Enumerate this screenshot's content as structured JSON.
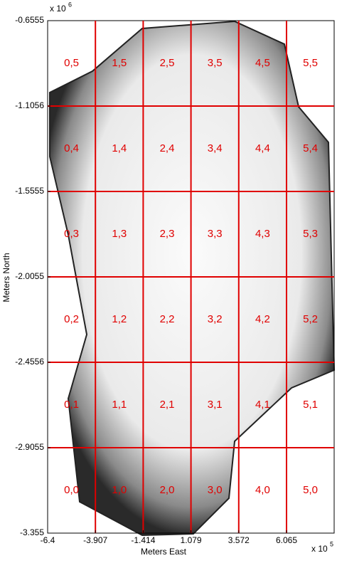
{
  "map": {
    "x_axis": {
      "label": "Meters East",
      "ticks": [
        "-6.4",
        "-3.907",
        "-1.414",
        "1.079",
        "3.572",
        "6.065"
      ],
      "multiplier": "x 10",
      "exponent": "5"
    },
    "y_axis": {
      "label": "Meters North",
      "ticks": [
        "-0.6555",
        "-1.1056",
        "-1.5555",
        "-2.0055",
        "-2.4556",
        "-2.9055",
        "-3.355"
      ],
      "multiplier": "x 10",
      "exponent": "6"
    },
    "tiles": [
      [
        "0,5",
        "1,5",
        "2,5",
        "3,5",
        "4,5",
        "5,5"
      ],
      [
        "0,4",
        "1,4",
        "2,4",
        "3,4",
        "4,4",
        "5,4"
      ],
      [
        "0,3",
        "1,3",
        "2,3",
        "3,3",
        "4,3",
        "5,3"
      ],
      [
        "0,2",
        "1,2",
        "2,2",
        "3,2",
        "4,2",
        "5,2"
      ],
      [
        "0,1",
        "1,1",
        "2,1",
        "3,1",
        "4,1",
        "5,1"
      ],
      [
        "0,0",
        "1,0",
        "2,0",
        "3,0",
        "4,0",
        "5,0"
      ]
    ]
  }
}
